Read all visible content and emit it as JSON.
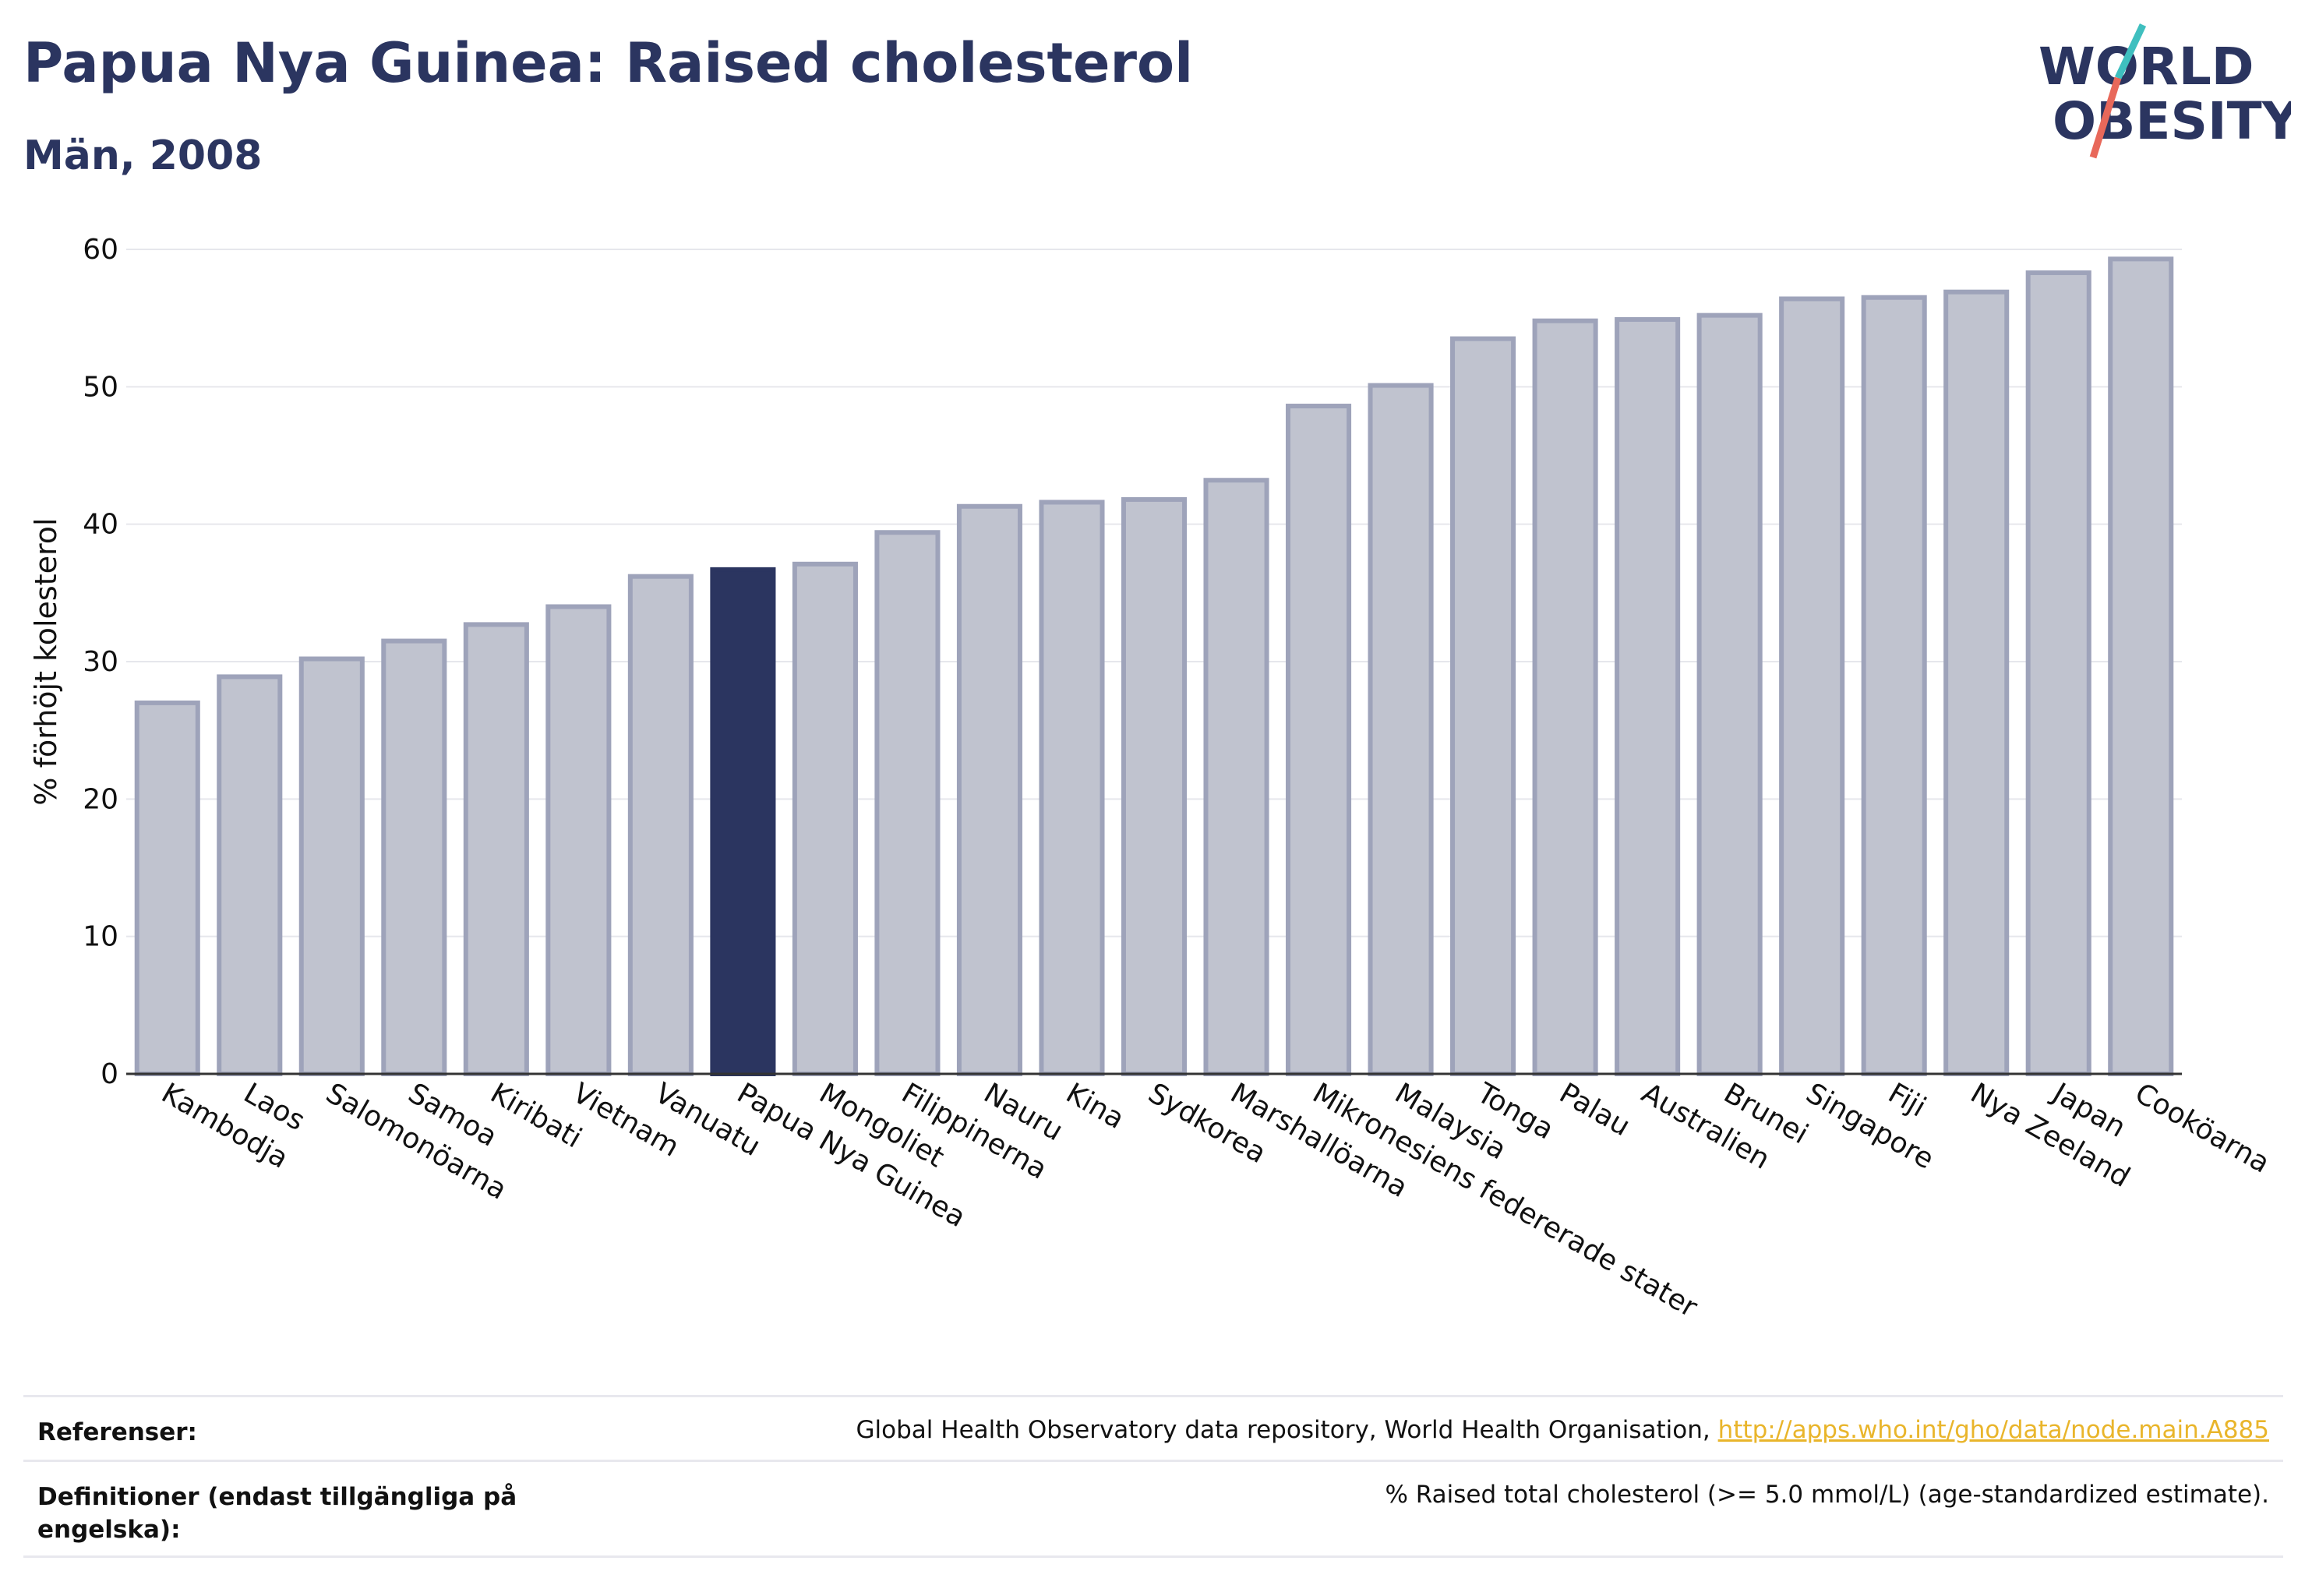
{
  "title": "Papua Nya Guinea: Raised cholesterol",
  "subtitle": "Män, 2008",
  "logo": {
    "line1": "WORLD",
    "line2": "OBESITY"
  },
  "chart_data": {
    "type": "bar",
    "ylabel": "% förhöjt kolesterol",
    "xlabel": "",
    "ylim": [
      0,
      60
    ],
    "yticks": [
      0,
      10,
      20,
      30,
      40,
      50,
      60
    ],
    "grid": true,
    "highlight": "Papua Nya Guinea",
    "colors": {
      "bar": "#c0c3cf",
      "bar_edge": "#9ea3ba",
      "highlight": "#2b3560"
    },
    "categories": [
      "Kambodja",
      "Laos",
      "Salomonöarna",
      "Samoa",
      "Kiribati",
      "Vietnam",
      "Vanuatu",
      "Papua Nya Guinea",
      "Mongoliet",
      "Filippinerna",
      "Nauru",
      "Kina",
      "Sydkorea",
      "Marshallöarna",
      "Mikronesiens federerade stater",
      "Malaysia",
      "Tonga",
      "Palau",
      "Australien",
      "Brunei",
      "Singapore",
      "Fiji",
      "Nya Zeeland",
      "Japan",
      "Cooköarna"
    ],
    "values": [
      27.0,
      28.9,
      30.2,
      31.5,
      32.7,
      34.0,
      36.2,
      36.7,
      37.1,
      39.4,
      41.3,
      41.6,
      41.8,
      43.2,
      48.6,
      50.1,
      53.5,
      54.8,
      54.9,
      55.2,
      56.4,
      56.5,
      56.9,
      58.3,
      59.3
    ]
  },
  "footer": {
    "ref_label": "Referenser:",
    "ref_text": "Global Health Observatory data repository, World Health Organisation, ",
    "ref_link": "http://apps.who.int/gho/data/node.main.A885",
    "def_label": "Definitioner (endast tillgängliga på engelska):",
    "def_text": "% Raised total cholesterol (>= 5.0 mmol/L) (age-standardized estimate)."
  }
}
